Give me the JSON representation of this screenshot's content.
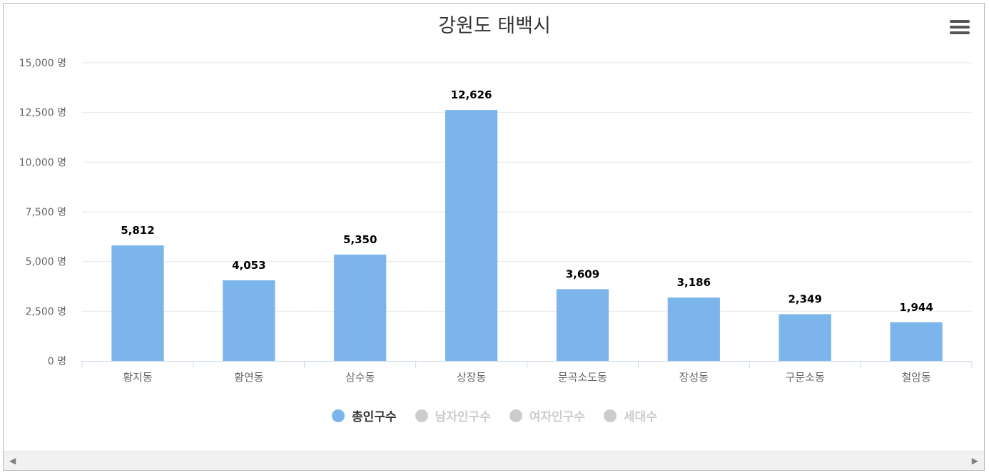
{
  "chart_data": {
    "type": "bar",
    "title": "강원도 태백시",
    "categories": [
      "황지동",
      "황연동",
      "삼수동",
      "상장동",
      "문곡소도동",
      "장성동",
      "구문소동",
      "철암동"
    ],
    "series": [
      {
        "name": "총인구수",
        "values": [
          5812,
          4053,
          5350,
          12626,
          3609,
          3186,
          2349,
          1944
        ],
        "color": "#7cb5ec",
        "visible": true
      },
      {
        "name": "남자인구수",
        "color": "#cccccc",
        "visible": false
      },
      {
        "name": "여자인구수",
        "color": "#cccccc",
        "visible": false
      },
      {
        "name": "세대수",
        "color": "#cccccc",
        "visible": false
      }
    ],
    "value_labels": [
      "5,812",
      "4,053",
      "5,350",
      "12,626",
      "3,609",
      "3,186",
      "2,349",
      "1,944"
    ],
    "ylim": [
      0,
      15000
    ],
    "yticks": [
      0,
      2500,
      5000,
      7500,
      10000,
      12500,
      15000
    ],
    "ytick_labels": [
      "0 명",
      "2,500 명",
      "5,000 명",
      "7,500 명",
      "10,000 명",
      "12,500 명",
      "15,000 명"
    ],
    "grid": true,
    "legend": "bottom-center"
  },
  "icons": {
    "menu": "hamburger-menu-icon",
    "scroll_left": "arrow-left-icon",
    "scroll_right": "arrow-right-icon"
  },
  "colors": {
    "bar": "#7cb5ec",
    "grid": "#e6e6e6",
    "legend_inactive": "#cccccc"
  }
}
